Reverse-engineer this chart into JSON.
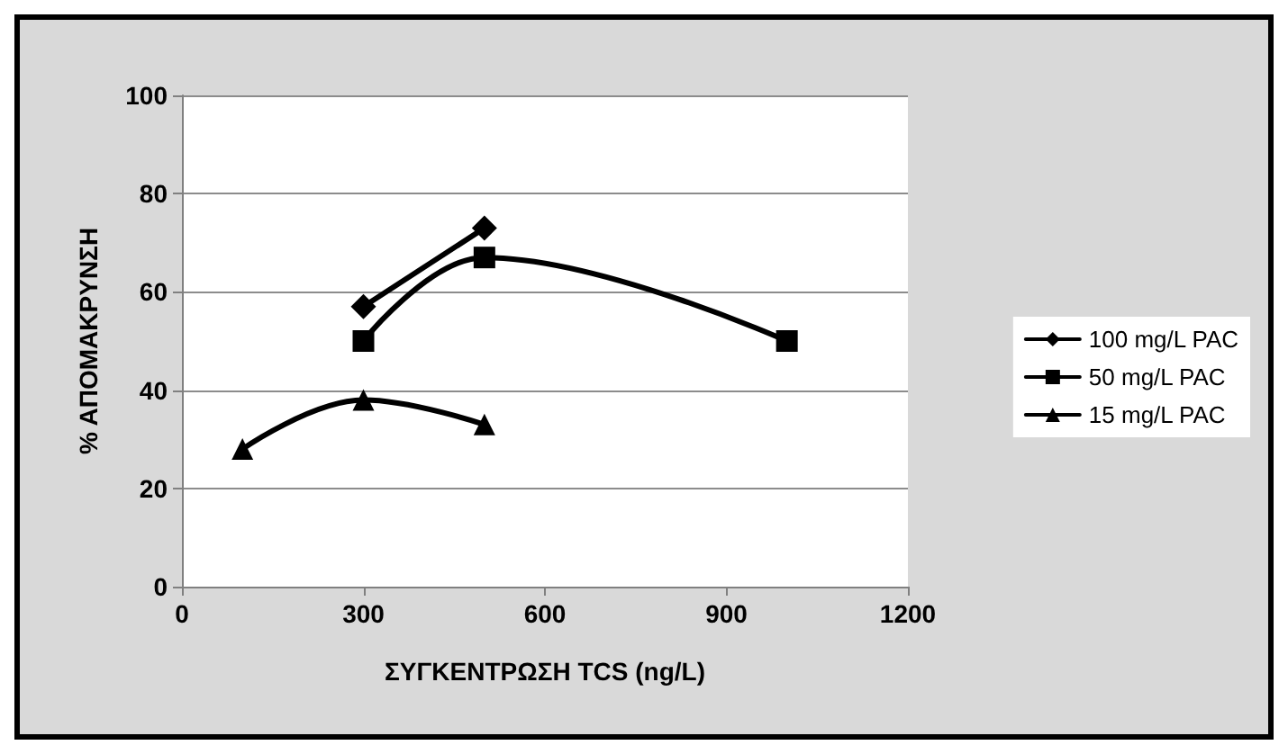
{
  "chart_data": {
    "type": "line",
    "xlabel": "ΣΥΓΚΕΝΤΡΩΣΗ TCS (ng/L)",
    "ylabel": "% ΑΠΟΜΑΚΡΥΝΣΗ",
    "series": [
      {
        "name": "100 mg/L PAC",
        "color": "#000000",
        "marker": "diamond",
        "x": [
          300,
          500
        ],
        "values": [
          57,
          73
        ]
      },
      {
        "name": "50 mg/L PAC",
        "color": "#000000",
        "marker": "square",
        "x": [
          300,
          500,
          1000
        ],
        "values": [
          50,
          67,
          50
        ]
      },
      {
        "name": "15 mg/L PAC",
        "color": "#000000",
        "marker": "triangle",
        "x": [
          100,
          300,
          500
        ],
        "values": [
          28,
          38,
          33
        ]
      }
    ],
    "xlim": [
      0,
      1200
    ],
    "xticks": [
      0,
      300,
      600,
      900,
      1200
    ],
    "ylim": [
      0,
      100
    ],
    "yticks": [
      0,
      20,
      40,
      60,
      80,
      100
    ],
    "grid": "y",
    "legend": "right",
    "line_style": "solid"
  }
}
